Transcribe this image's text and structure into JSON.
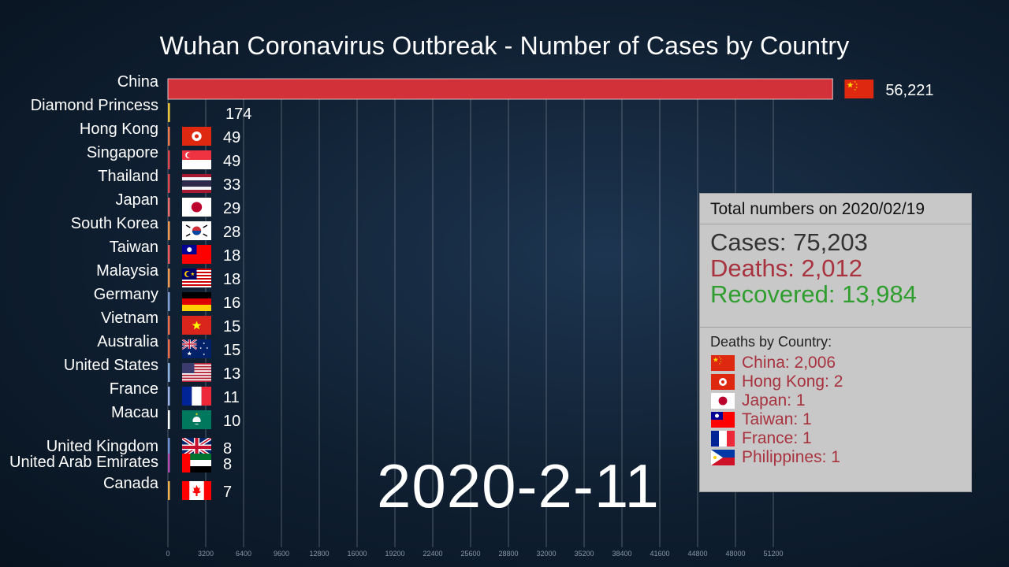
{
  "title": "Wuhan Coronavirus Outbreak - Number of Cases by Country",
  "date_label": "2020-2-11",
  "totals": {
    "heading": "Total numbers on 2020/02/19",
    "cases": "Cases: 75,203",
    "deaths": "Deaths: 2,012",
    "recovered": "Recovered: 13,984"
  },
  "deaths_by_country": {
    "heading": "Deaths by Country:",
    "items": [
      {
        "text": "China: 2,006",
        "flag": "china-flag-icon"
      },
      {
        "text": "Hong Kong: 2",
        "flag": "hong-kong-flag-icon"
      },
      {
        "text": "Japan: 1",
        "flag": "japan-flag-icon"
      },
      {
        "text": "Taiwan: 1",
        "flag": "taiwan-flag-icon"
      },
      {
        "text": "France: 1",
        "flag": "france-flag-icon"
      },
      {
        "text": "Philippines: 1",
        "flag": "philippines-flag-icon"
      }
    ]
  },
  "chart_data": {
    "type": "bar",
    "orientation": "horizontal",
    "title": "Wuhan Coronavirus Outbreak - Number of Cases by Country",
    "xlim": [
      0,
      53000
    ],
    "x_ticks": [
      0,
      3200,
      6400,
      9600,
      12800,
      16000,
      19200,
      22400,
      25600,
      28800,
      32000,
      35200,
      38400,
      41600,
      44800,
      48000,
      51200
    ],
    "grid": true,
    "categories": [
      "China",
      "Diamond Princess",
      "Hong Kong",
      "Singapore",
      "Thailand",
      "Japan",
      "South Korea",
      "Taiwan",
      "Malaysia",
      "Germany",
      "Vietnam",
      "Australia",
      "United States",
      "France",
      "Macau",
      "United Kingdom",
      "United Arab Emirates",
      "Canada"
    ],
    "values": [
      56221,
      174,
      49,
      49,
      33,
      29,
      28,
      18,
      18,
      16,
      15,
      15,
      13,
      11,
      10,
      8,
      8,
      7
    ],
    "value_labels": [
      "56,221",
      "174",
      "49",
      "49",
      "33",
      "29",
      "28",
      "18",
      "18",
      "16",
      "15",
      "15",
      "13",
      "11",
      "10",
      "8",
      "8",
      "7"
    ],
    "bar_colors": [
      "#d33139",
      "#e8c339",
      "#ef7a4c",
      "#e2474f",
      "#e2474f",
      "#ee6d6d",
      "#f29a52",
      "#ee5b5b",
      "#f29a52",
      "#7f9fd4",
      "#ee6d4c",
      "#ee6d4c",
      "#8fb6e3",
      "#9bb6e8",
      "#ffffff",
      "#6f8fd4",
      "#b44bb1",
      "#f0b24c"
    ],
    "flags": [
      "china-flag-icon",
      "",
      "hong-kong-flag-icon",
      "singapore-flag-icon",
      "thailand-flag-icon",
      "japan-flag-icon",
      "south-korea-flag-icon",
      "taiwan-flag-icon",
      "malaysia-flag-icon",
      "germany-flag-icon",
      "vietnam-flag-icon",
      "australia-flag-icon",
      "united-states-flag-icon",
      "france-flag-icon",
      "macau-flag-icon",
      "united-kingdom-flag-icon",
      "united-arab-emirates-flag-icon",
      "canada-flag-icon"
    ]
  },
  "colors": {
    "background": "#0f1f31",
    "info_box": "#c8c8c8",
    "deaths_red": "#a8323e",
    "recovered_green": "#2f9e2f"
  }
}
